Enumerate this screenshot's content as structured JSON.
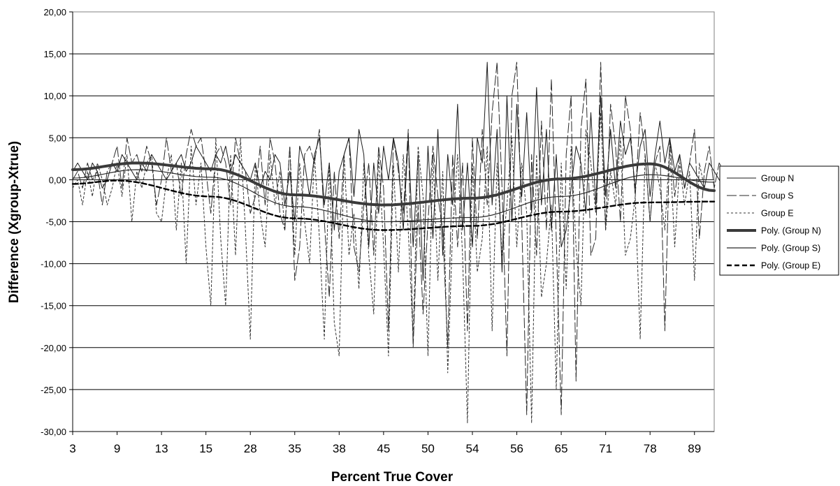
{
  "chart_data": {
    "type": "line",
    "xlabel": "Percent True Cover",
    "ylabel": "Difference (Xgroup-Xtrue)",
    "ylim": [
      -30,
      20
    ],
    "ytick_step": 5,
    "y_tick_labels": [
      "20,00",
      "15,00",
      "10,00",
      "5,00",
      "0,00",
      "-5,00",
      "-10,00",
      "-15,00",
      "-20,00",
      "-25,00",
      "-30,00"
    ],
    "x_tick_labels": [
      "3",
      "9",
      "13",
      "15",
      "28",
      "35",
      "38",
      "45",
      "50",
      "54",
      "56",
      "65",
      "71",
      "78",
      "89"
    ],
    "x_tick_indices": [
      0,
      9,
      18,
      27,
      36,
      45,
      54,
      63,
      72,
      81,
      90,
      99,
      108,
      117,
      126
    ],
    "n_points": 131,
    "grid": true,
    "legend_position": "right",
    "series": [
      {
        "name": "Group N",
        "style": "solid-thin",
        "values": [
          1,
          2,
          1,
          0,
          2,
          1,
          -1,
          0,
          2,
          1,
          3,
          2,
          1,
          0,
          2,
          1,
          3,
          2,
          1,
          0,
          1,
          2,
          3,
          1,
          2,
          4,
          3,
          2,
          1,
          3,
          2,
          4,
          1,
          3,
          2,
          1,
          0,
          2,
          -1,
          1,
          0,
          3,
          2,
          -3,
          1,
          -5,
          4,
          2,
          -2,
          3,
          5,
          -3,
          2,
          -6,
          1,
          3,
          5,
          -2,
          6,
          3,
          -8,
          2,
          -4,
          4,
          0,
          5,
          2,
          -6,
          5,
          -8,
          3,
          -12,
          4,
          -7,
          6,
          -9,
          3,
          -3,
          9,
          -6,
          2,
          -8,
          5,
          2,
          14,
          -3,
          6,
          -11,
          10,
          -5,
          9,
          -2,
          8,
          -4,
          11,
          -3,
          6,
          -6,
          3,
          -8,
          -6,
          -1,
          4,
          2,
          -4,
          8,
          -3,
          10,
          -2,
          6,
          -1,
          7,
          3,
          5,
          -1,
          4,
          6,
          -2,
          3,
          7,
          2,
          5,
          1,
          3,
          -1,
          2,
          1,
          0,
          -1,
          2,
          1,
          0,
          -1,
          1,
          -1
        ]
      },
      {
        "name": "Group S",
        "style": "long-dash",
        "values": [
          0,
          1,
          -1,
          2,
          0,
          1,
          -3,
          1,
          2,
          4,
          -1,
          5,
          2,
          3,
          1,
          4,
          2,
          -3,
          0,
          5,
          1,
          2,
          -2,
          3,
          6,
          4,
          5,
          1,
          -4,
          3,
          4,
          2,
          -3,
          5,
          2,
          1,
          -4,
          -2,
          4,
          -3,
          5,
          2,
          -4,
          -6,
          4,
          -12,
          -8,
          3,
          4,
          2,
          6,
          -5,
          -14,
          1,
          -7,
          3,
          5,
          -8,
          -11,
          -3,
          2,
          -9,
          4,
          -1,
          -18,
          5,
          1,
          -4,
          6,
          -20,
          -3,
          -16,
          -5,
          4,
          -2,
          -6,
          -20,
          3,
          -8,
          2,
          -18,
          5,
          -7,
          6,
          -3,
          8,
          14,
          -1,
          -21,
          10,
          14,
          -5,
          -28,
          3,
          -9,
          7,
          -6,
          12,
          -7,
          -28,
          3,
          10,
          -24,
          6,
          12,
          -9,
          -7,
          14,
          -6,
          9,
          4,
          -5,
          10,
          6,
          -2,
          8,
          3,
          -5,
          2,
          4,
          -18,
          5,
          -2,
          3,
          -1,
          2,
          6,
          -7,
          1,
          4,
          -1,
          2,
          1
        ]
      },
      {
        "name": "Group E",
        "style": "short-dash",
        "values": [
          -1,
          0,
          -3,
          1,
          -2,
          2,
          0,
          -3,
          -1,
          2,
          -2,
          3,
          -5,
          1,
          -1,
          2,
          3,
          -4,
          -5,
          0,
          3,
          -6,
          2,
          -10,
          4,
          -3,
          2,
          -8,
          -15,
          5,
          -7,
          -15,
          3,
          -9,
          5,
          -6,
          -19,
          2,
          -4,
          -8,
          3,
          -3,
          1,
          -6,
          4,
          -9,
          2,
          -5,
          -10,
          3,
          -7,
          -19,
          2,
          -17,
          -21,
          3,
          -9,
          -4,
          -13,
          2,
          -9,
          -16,
          3,
          -8,
          -21,
          2,
          -11,
          3,
          -6,
          -19,
          4,
          -2,
          -21,
          3,
          -12,
          1,
          -23,
          -6,
          3,
          -9,
          -29,
          2,
          -11,
          -7,
          4,
          -18,
          2,
          -9,
          -3,
          5,
          -8,
          2,
          -4,
          -29,
          3,
          -14,
          -10,
          -3,
          -25,
          2,
          -13,
          4,
          -8,
          -15,
          6,
          2,
          -4,
          8,
          -6,
          1,
          -3,
          5,
          -9,
          -7,
          -2,
          -19,
          3,
          -5,
          2,
          -1,
          -6,
          4,
          -8,
          2,
          -3,
          1,
          -12,
          2,
          -1
        ]
      },
      {
        "name": "Poly. (Group N)",
        "style": "solid-thick",
        "poly_anchors": [
          [
            0,
            1.2
          ],
          [
            13,
            2.0
          ],
          [
            28,
            1.3
          ],
          [
            45,
            -1.8
          ],
          [
            63,
            -3.0
          ],
          [
            81,
            -2.2
          ],
          [
            99,
            0.1
          ],
          [
            117,
            1.9
          ],
          [
            130,
            -1.3
          ]
        ]
      },
      {
        "name": "Poly. (Group S)",
        "style": "long-dash-trend",
        "poly_anchors": [
          [
            0,
            0.2
          ],
          [
            13,
            1.2
          ],
          [
            28,
            0.3
          ],
          [
            45,
            -3.2
          ],
          [
            63,
            -5.0
          ],
          [
            81,
            -4.5
          ],
          [
            99,
            -2.0
          ],
          [
            117,
            0.6
          ],
          [
            130,
            -0.3
          ]
        ]
      },
      {
        "name": "Poly. (Group E)",
        "style": "dashed-thick",
        "poly_anchors": [
          [
            0,
            -0.5
          ],
          [
            9,
            -0.1
          ],
          [
            28,
            -2.0
          ],
          [
            45,
            -4.6
          ],
          [
            63,
            -6.0
          ],
          [
            81,
            -5.5
          ],
          [
            99,
            -3.8
          ],
          [
            117,
            -2.7
          ],
          [
            130,
            -2.6
          ]
        ]
      }
    ]
  }
}
